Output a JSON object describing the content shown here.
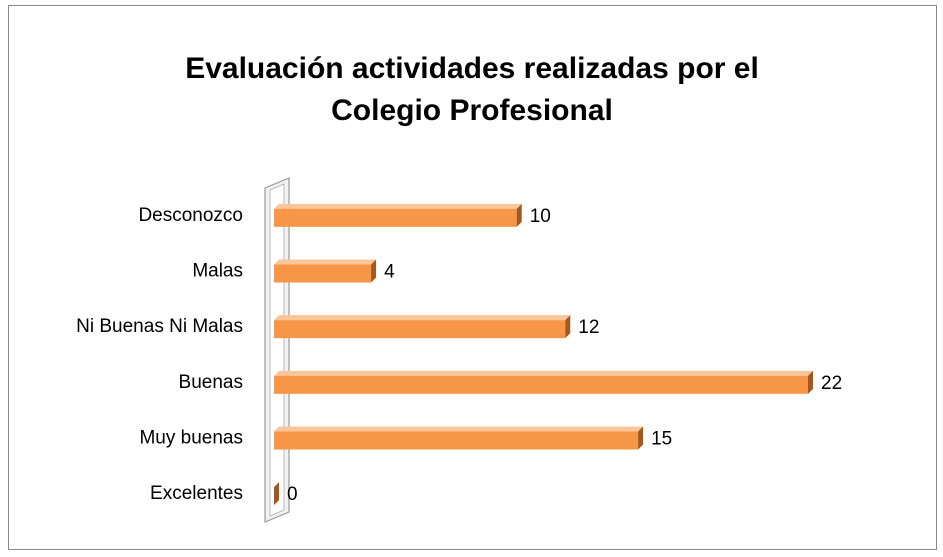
{
  "chart_data": {
    "type": "bar3d-horizontal",
    "title": [
      "Evaluación actividades realizadas por el",
      "Colegio Profesional"
    ],
    "categories": [
      "Desconozco",
      "Malas",
      "Ni Buenas Ni Malas",
      "Buenas",
      "Muy buenas",
      "Excelentes"
    ],
    "values": [
      10,
      4,
      12,
      22,
      15,
      0
    ],
    "color": "#f79646"
  }
}
